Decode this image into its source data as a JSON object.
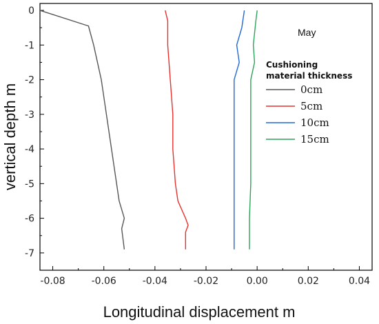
{
  "chart_data": {
    "type": "line",
    "xlabel": "Longitudinal displacement m",
    "ylabel": "vertical depth m",
    "xlim": [
      -0.085,
      0.045
    ],
    "ylim": [
      -7.5,
      0.2
    ],
    "xticks": [
      -0.08,
      -0.06,
      -0.04,
      -0.02,
      0.0,
      0.02,
      0.04
    ],
    "xtick_labels": [
      "-0.08",
      "-0.06",
      "-0.04",
      "-0.02",
      "0.00",
      "0.02",
      "0.04"
    ],
    "yticks": [
      0,
      -1,
      -2,
      -3,
      -4,
      -5,
      -6,
      -7
    ],
    "ytick_labels": [
      "0",
      "-1",
      "-2",
      "-3",
      "-4",
      "-5",
      "-6",
      "-7"
    ],
    "grid": false,
    "annotation": "May",
    "legend": {
      "title_lines": [
        "Cushioning",
        "material thickness"
      ],
      "position": "top-right"
    },
    "series": [
      {
        "name": "0cm",
        "color": "#555555",
        "points": [
          [
            -0.085,
            0.0
          ],
          [
            -0.066,
            -0.45
          ],
          [
            -0.064,
            -1.0
          ],
          [
            -0.061,
            -2.0
          ],
          [
            -0.059,
            -3.0
          ],
          [
            -0.057,
            -4.0
          ],
          [
            -0.055,
            -5.0
          ],
          [
            -0.054,
            -5.5
          ],
          [
            -0.052,
            -6.0
          ],
          [
            -0.053,
            -6.3
          ],
          [
            -0.052,
            -6.9
          ]
        ]
      },
      {
        "name": "5cm",
        "color": "#e8302c",
        "points": [
          [
            -0.036,
            0.0
          ],
          [
            -0.035,
            -0.3
          ],
          [
            -0.035,
            -1.0
          ],
          [
            -0.034,
            -2.0
          ],
          [
            -0.033,
            -3.0
          ],
          [
            -0.033,
            -4.0
          ],
          [
            -0.032,
            -5.0
          ],
          [
            -0.031,
            -5.5
          ],
          [
            -0.028,
            -6.0
          ],
          [
            -0.027,
            -6.2
          ],
          [
            -0.028,
            -6.4
          ],
          [
            -0.028,
            -6.9
          ]
        ]
      },
      {
        "name": "10cm",
        "color": "#1f66d8",
        "points": [
          [
            -0.005,
            0.0
          ],
          [
            -0.006,
            -0.5
          ],
          [
            -0.008,
            -1.0
          ],
          [
            -0.007,
            -1.5
          ],
          [
            -0.009,
            -2.0
          ],
          [
            -0.009,
            -3.0
          ],
          [
            -0.009,
            -4.0
          ],
          [
            -0.009,
            -5.0
          ],
          [
            -0.009,
            -6.0
          ],
          [
            -0.009,
            -6.9
          ]
        ]
      },
      {
        "name": "15cm",
        "color": "#2ca25a",
        "points": [
          [
            0.0,
            0.0
          ],
          [
            -0.0005,
            -0.3
          ],
          [
            -0.0015,
            -1.0
          ],
          [
            -0.001,
            -1.5
          ],
          [
            -0.0025,
            -2.0
          ],
          [
            -0.0025,
            -3.0
          ],
          [
            -0.0025,
            -4.0
          ],
          [
            -0.0025,
            -5.0
          ],
          [
            -0.003,
            -6.0
          ],
          [
            -0.003,
            -6.9
          ]
        ]
      }
    ]
  }
}
